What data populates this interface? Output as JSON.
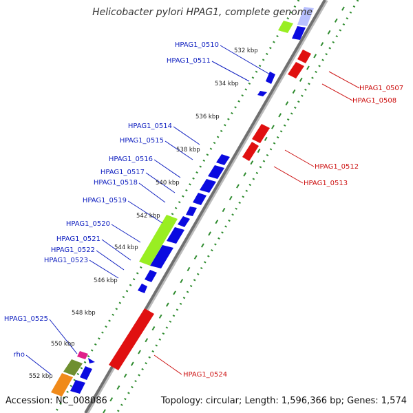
{
  "title": "Helicobacter pylori HPAG1, complete genome",
  "accession": "Accession: NC_008086",
  "topology": "Topology: circular; Length: 1,596,366 bp; Genes: 1,574",
  "colors": {
    "backbone": "#777777",
    "tick_dots": "#2e8b2e",
    "forward_gene": "#0a0ae0",
    "reverse_gene": "#e01010",
    "rrna_green": "#99ee22",
    "olive": "#6f8f2f",
    "orange": "#f08a1a",
    "magenta": "#e0208a",
    "label_blue": "#1020c0",
    "label_red": "#cc1010"
  },
  "ticks": [
    "532 kbp",
    "534 kbp",
    "536 kbp",
    "538 kbp",
    "540 kbp",
    "542 kbp",
    "544 kbp",
    "546 kbp",
    "548 kbp",
    "550 kbp",
    "552 kbp"
  ],
  "left_labels": [
    "HPAG1_0510",
    "HPAG1_0511",
    "HPAG1_0514",
    "HPAG1_0515",
    "HPAG1_0516",
    "HPAG1_0517",
    "HPAG1_0518",
    "HPAG1_0519",
    "HPAG1_0520",
    "HPAG1_0521",
    "HPAG1_0522",
    "HPAG1_0523",
    "HPAG1_0525",
    "rho"
  ],
  "right_labels": [
    "HPAG1_0507",
    "HPAG1_0508",
    "HPAG1_0512",
    "HPAG1_0513",
    "HPAG1_0524"
  ]
}
